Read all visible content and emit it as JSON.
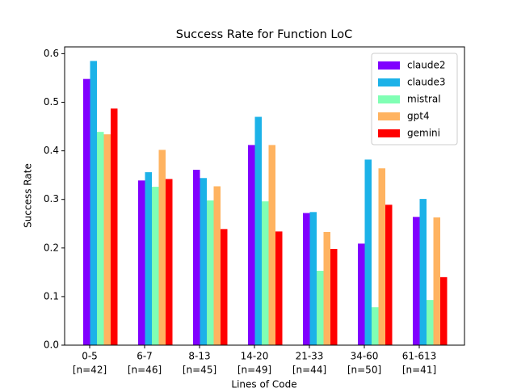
{
  "chart_data": {
    "type": "bar",
    "title": "Success Rate for Function LoC",
    "x_label": "Lines of Code",
    "y_label": "Success Rate",
    "categories": [
      "0-5",
      "6-7",
      "8-13",
      "14-20",
      "21-33",
      "34-60",
      "61-613"
    ],
    "category_notes": [
      "[n=42]",
      "[n=46]",
      "[n=45]",
      "[n=49]",
      "[n=44]",
      "[n=50]",
      "[n=41]"
    ],
    "series": [
      {
        "name": "claude2",
        "color": "#8000ff",
        "values": [
          0.548,
          0.339,
          0.361,
          0.412,
          0.272,
          0.209,
          0.264
        ]
      },
      {
        "name": "claude3",
        "color": "#1cb2e8",
        "values": [
          0.585,
          0.356,
          0.344,
          0.47,
          0.274,
          0.382,
          0.301
        ]
      },
      {
        "name": "mistral",
        "color": "#80ffb4",
        "values": [
          0.439,
          0.326,
          0.298,
          0.296,
          0.153,
          0.078,
          0.093
        ]
      },
      {
        "name": "gpt4",
        "color": "#ffb360",
        "values": [
          0.434,
          0.402,
          0.327,
          0.412,
          0.233,
          0.364,
          0.263
        ]
      },
      {
        "name": "gemini",
        "color": "#ff0000",
        "values": [
          0.487,
          0.342,
          0.239,
          0.234,
          0.198,
          0.289,
          0.14
        ]
      }
    ],
    "ylim": [
      0,
      0.614
    ],
    "yticks": [
      {
        "value": 0,
        "label": "0.0"
      },
      0.1,
      0.2,
      0.3,
      0.4,
      0.5,
      0.6
    ],
    "legend": "upper right",
    "grid": false
  }
}
